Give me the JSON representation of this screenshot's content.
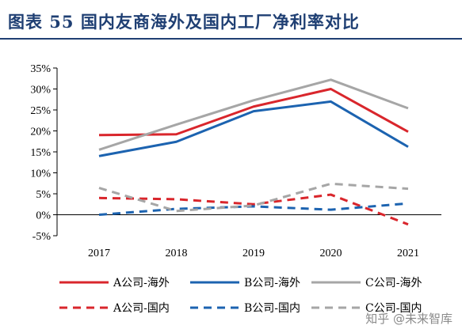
{
  "title": "图表 55   国内友商海外及国内工厂净利率对比",
  "watermark": "知乎 @未来智库",
  "chart_data": {
    "type": "line",
    "categories": [
      "2017",
      "2018",
      "2019",
      "2020",
      "2021"
    ],
    "ylim": [
      -5,
      35
    ],
    "yticks": [
      -5,
      0,
      5,
      10,
      15,
      20,
      25,
      30,
      35
    ],
    "ytick_labels": [
      "-5%",
      "0%",
      "5%",
      "10%",
      "15%",
      "20%",
      "25%",
      "30%",
      "35%"
    ],
    "grid": false,
    "legend_position": "bottom",
    "series": [
      {
        "name": "A公司-海外",
        "values": [
          19.0,
          19.2,
          25.8,
          30.0,
          19.8
        ],
        "color": "#d9262c",
        "dash": "solid"
      },
      {
        "name": "B公司-海外",
        "values": [
          14.0,
          17.4,
          24.7,
          27.0,
          16.2
        ],
        "color": "#1c63b0",
        "dash": "solid"
      },
      {
        "name": "C公司-海外",
        "values": [
          15.5,
          21.5,
          27.3,
          32.2,
          25.4
        ],
        "color": "#a6a6a6",
        "dash": "solid"
      },
      {
        "name": "A公司-国内",
        "values": [
          4.0,
          3.7,
          2.5,
          4.8,
          -2.3
        ],
        "color": "#d9262c",
        "dash": "dashed"
      },
      {
        "name": "B公司-国内",
        "values": [
          0.0,
          1.4,
          2.0,
          1.2,
          2.7
        ],
        "color": "#1c63b0",
        "dash": "dashed"
      },
      {
        "name": "C公司-国内",
        "values": [
          6.4,
          0.9,
          2.2,
          7.4,
          6.2
        ],
        "color": "#a6a6a6",
        "dash": "dashed"
      }
    ]
  }
}
